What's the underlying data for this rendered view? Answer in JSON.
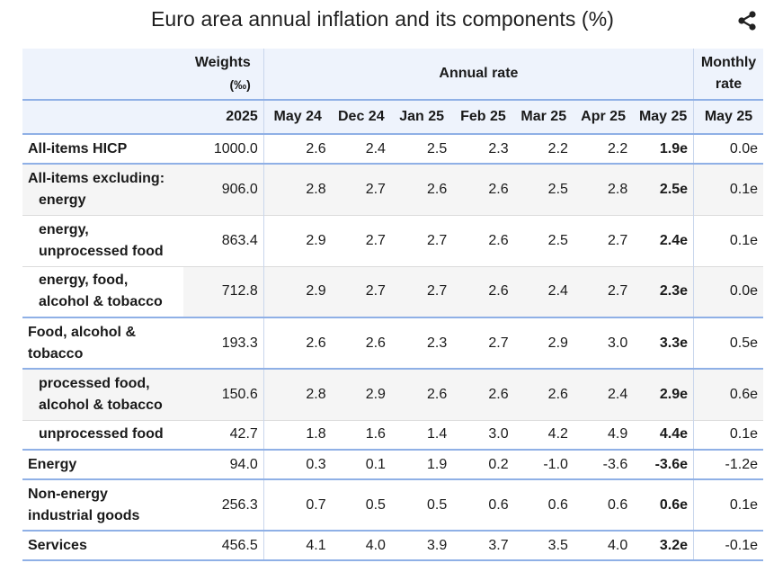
{
  "title": "Euro area annual inflation and its components (%)",
  "share_icon": "share-icon",
  "header": {
    "weights_label": "Weights",
    "weights_unit": "(‰)",
    "annual_label": "Annual rate",
    "monthly_label_1": "Monthly",
    "monthly_label_2": "rate",
    "columns": [
      "2025",
      "May 24",
      "Dec 24",
      "Jan 25",
      "Feb 25",
      "Mar 25",
      "Apr 25",
      "May 25",
      "May 25"
    ]
  },
  "rows": [
    {
      "label_1": "All-items HICP",
      "label_2": "",
      "values": [
        "1000.0",
        "2.6",
        "2.4",
        "2.5",
        "2.3",
        "2.2",
        "2.2",
        "1.9e",
        "0.0e"
      ]
    },
    {
      "label_1": "All-items excluding:",
      "label_2": "energy",
      "values": [
        "906.0",
        "2.8",
        "2.7",
        "2.6",
        "2.6",
        "2.5",
        "2.8",
        "2.5e",
        "0.1e"
      ]
    },
    {
      "label_1": "energy,",
      "label_2": "unprocessed food",
      "values": [
        "863.4",
        "2.9",
        "2.7",
        "2.7",
        "2.6",
        "2.5",
        "2.7",
        "2.4e",
        "0.1e"
      ]
    },
    {
      "label_1": "energy, food,",
      "label_2": "alcohol & tobacco",
      "values": [
        "712.8",
        "2.9",
        "2.7",
        "2.7",
        "2.6",
        "2.4",
        "2.7",
        "2.3e",
        "0.0e"
      ]
    },
    {
      "label_1": "Food, alcohol &",
      "label_2": "tobacco",
      "values": [
        "193.3",
        "2.6",
        "2.6",
        "2.3",
        "2.7",
        "2.9",
        "3.0",
        "3.3e",
        "0.5e"
      ]
    },
    {
      "label_1": "processed food,",
      "label_2": "alcohol & tobacco",
      "values": [
        "150.6",
        "2.8",
        "2.9",
        "2.6",
        "2.6",
        "2.6",
        "2.4",
        "2.9e",
        "0.6e"
      ]
    },
    {
      "label_1": "unprocessed food",
      "label_2": "",
      "values": [
        "42.7",
        "1.8",
        "1.6",
        "1.4",
        "3.0",
        "4.2",
        "4.9",
        "4.4e",
        "0.1e"
      ]
    },
    {
      "label_1": "Energy",
      "label_2": "",
      "values": [
        "94.0",
        "0.3",
        "0.1",
        "1.9",
        "0.2",
        "-1.0",
        "-3.6",
        "-3.6e",
        "-1.2e"
      ]
    },
    {
      "label_1": "Non-energy",
      "label_2": "industrial goods",
      "values": [
        "256.3",
        "0.7",
        "0.5",
        "0.5",
        "0.6",
        "0.6",
        "0.6",
        "0.6e",
        "0.1e"
      ]
    },
    {
      "label_1": "Services",
      "label_2": "",
      "values": [
        "456.5",
        "4.1",
        "4.0",
        "3.9",
        "3.7",
        "3.5",
        "4.0",
        "3.2e",
        "-0.1e"
      ]
    }
  ]
}
